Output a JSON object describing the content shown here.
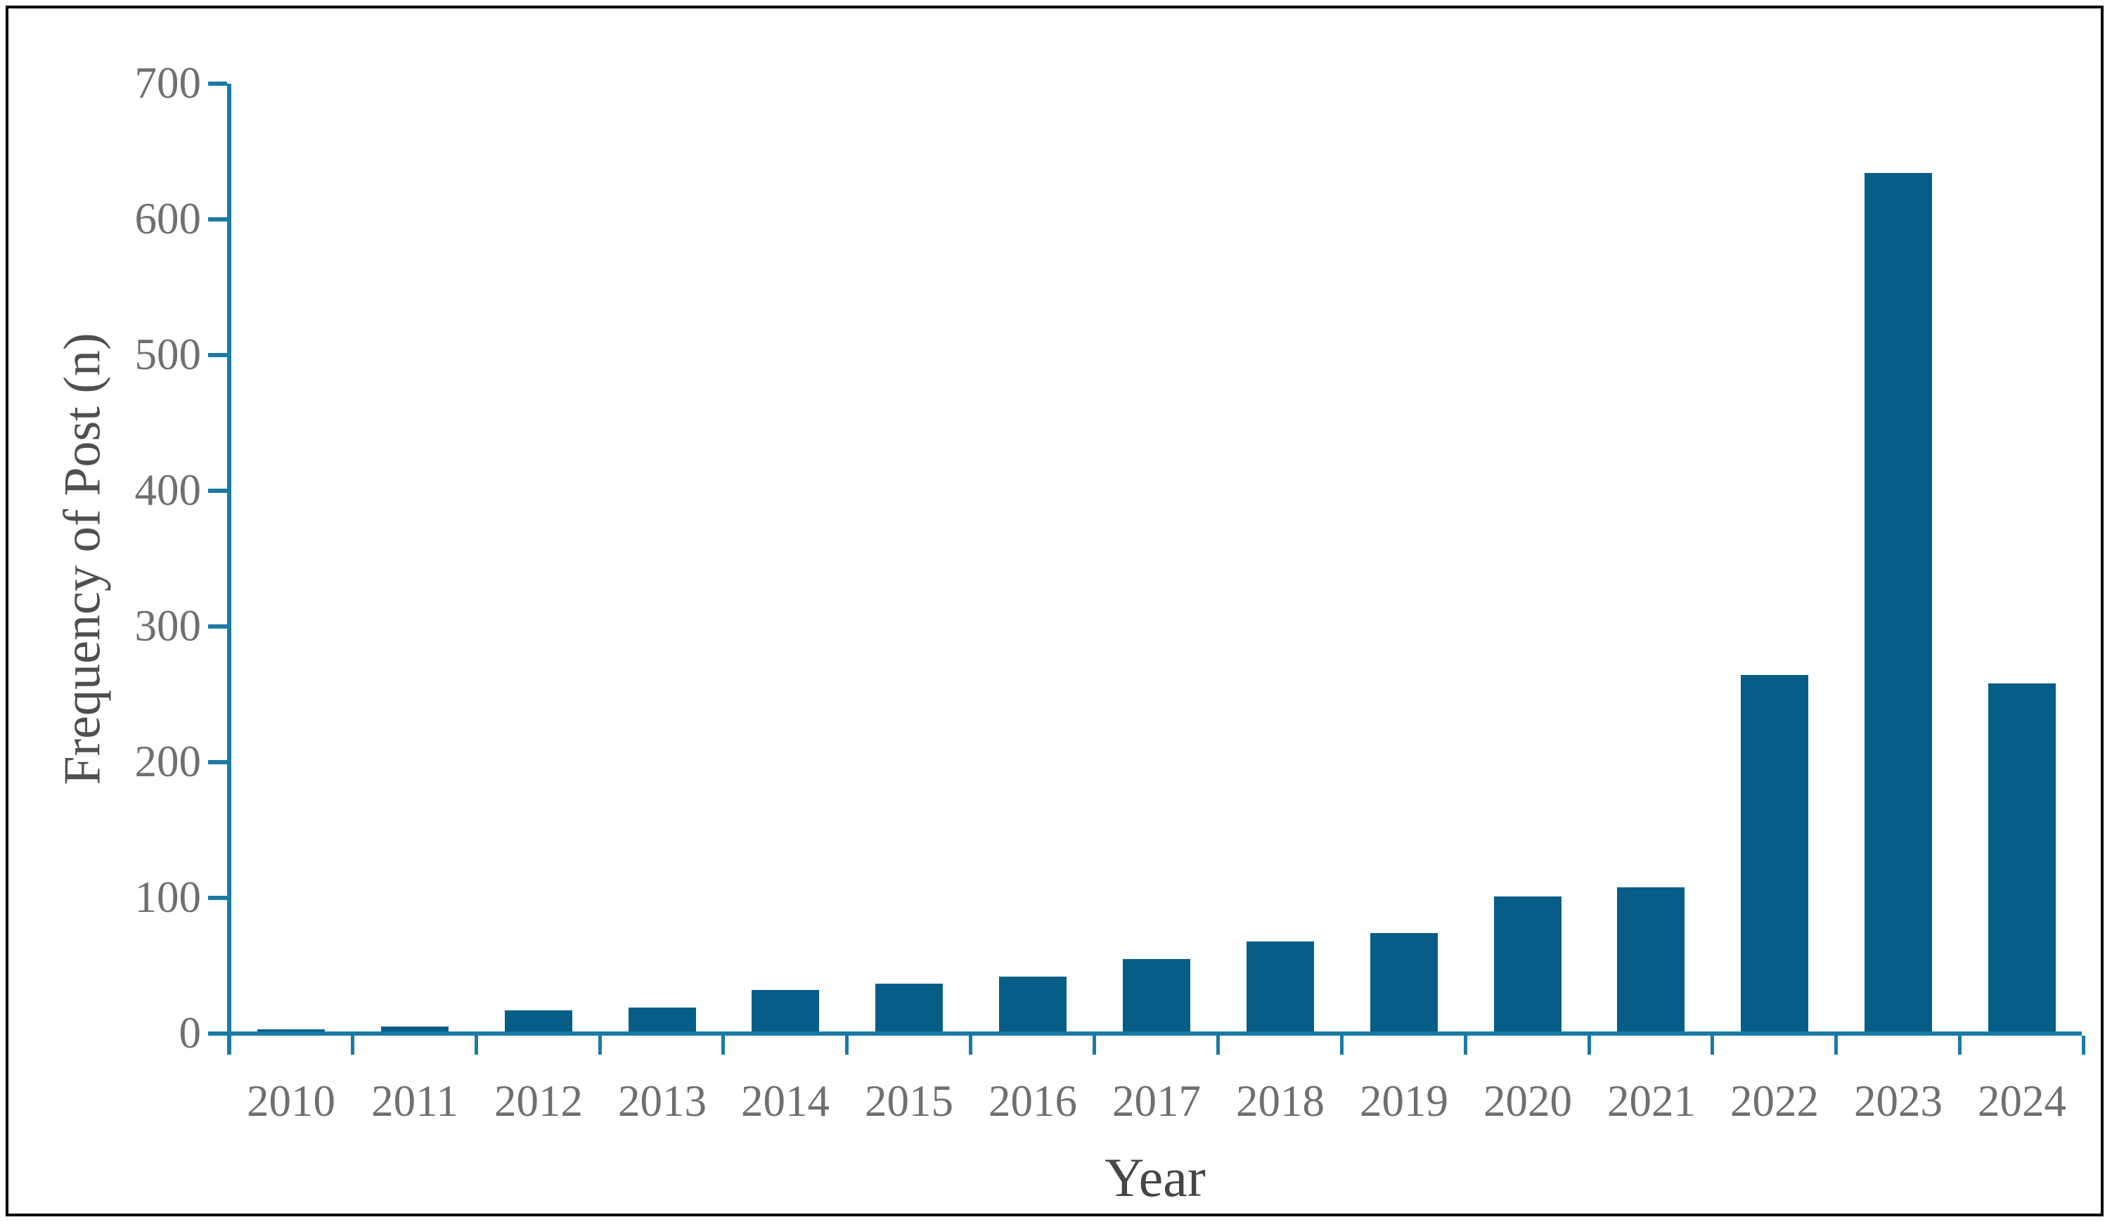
{
  "figure": {
    "background": "#ffffff",
    "border_color": "#000000"
  },
  "chart_data": {
    "type": "bar",
    "title": "",
    "xlabel": "Year",
    "ylabel": "Frequency of Post (n)",
    "categories": [
      "2010",
      "2011",
      "2012",
      "2013",
      "2014",
      "2015",
      "2016",
      "2017",
      "2018",
      "2019",
      "2020",
      "2021",
      "2022",
      "2023",
      "2024"
    ],
    "values": [
      3,
      5,
      17,
      19,
      32,
      37,
      42,
      55,
      68,
      74,
      101,
      108,
      264,
      634,
      258
    ],
    "ylim": [
      0,
      700
    ],
    "yticks": [
      0,
      100,
      200,
      300,
      400,
      500,
      600,
      700
    ],
    "grid": false,
    "legend": null,
    "bar_color": "#065e86",
    "axis_color": "#1b7aa6",
    "tick_label_color": "#6f6f6f",
    "axis_title_color": "#4f4f4f"
  }
}
